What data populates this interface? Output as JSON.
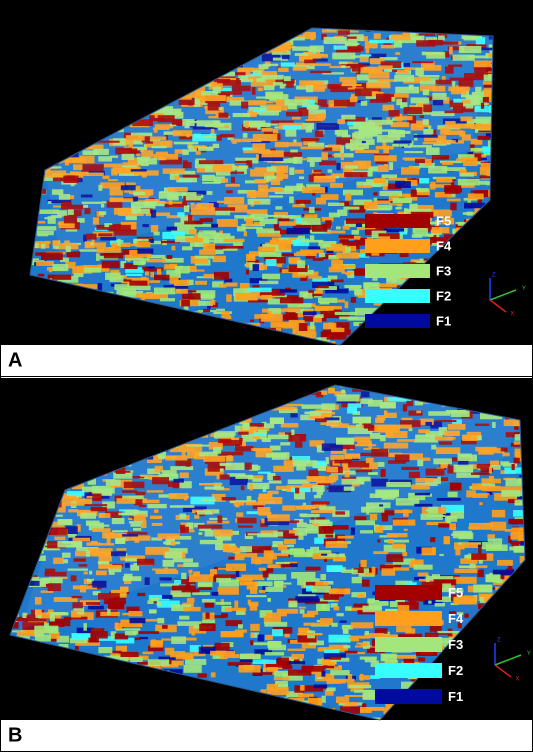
{
  "panels": [
    {
      "label": "A",
      "legend": [
        {
          "label": "F5",
          "color": "#a30000"
        },
        {
          "label": "F4",
          "color": "#ff9f1c"
        },
        {
          "label": "F3",
          "color": "#a2e67c"
        },
        {
          "label": "F2",
          "color": "#38ffff"
        },
        {
          "label": "F1",
          "color": "#000a9c"
        }
      ],
      "axes": [
        "Z",
        "Y",
        "X"
      ]
    },
    {
      "label": "B",
      "legend": [
        {
          "label": "F5",
          "color": "#a30000"
        },
        {
          "label": "F4",
          "color": "#ff9f1c"
        },
        {
          "label": "F3",
          "color": "#a2e67c"
        },
        {
          "label": "F2",
          "color": "#38ffff"
        },
        {
          "label": "F1",
          "color": "#000a9c"
        }
      ],
      "axes": [
        "Z",
        "Y",
        "X"
      ]
    }
  ]
}
